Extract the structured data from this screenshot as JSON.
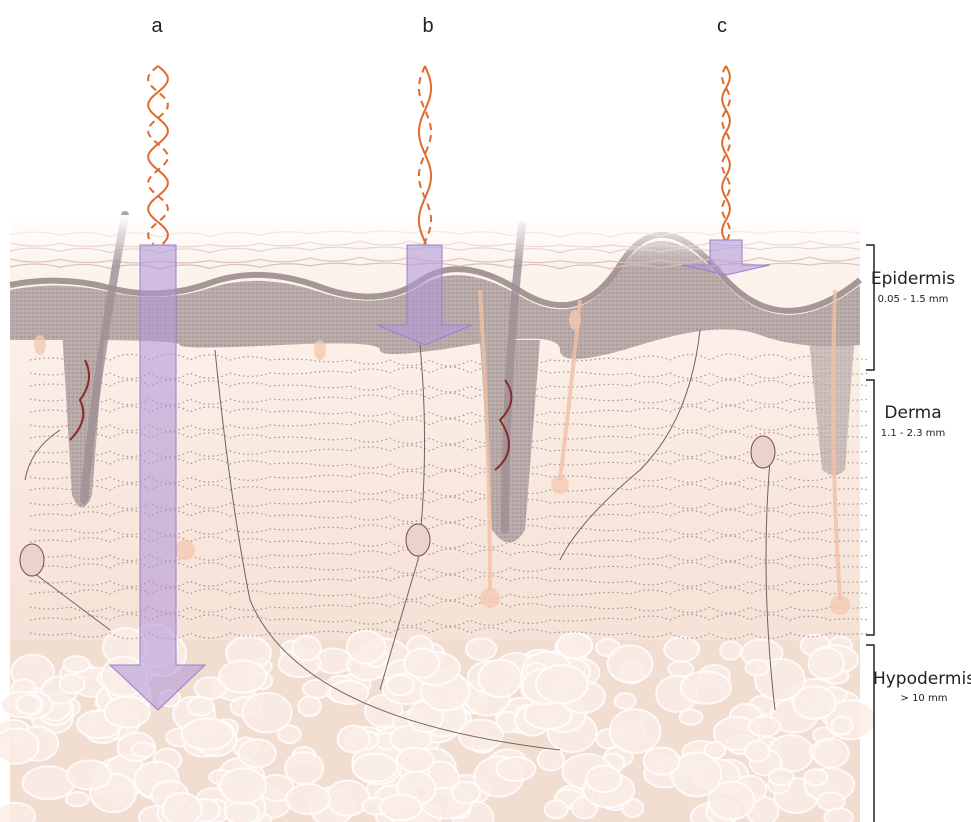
{
  "panels": [
    {
      "label": "a"
    },
    {
      "label": "b"
    },
    {
      "label": "c"
    }
  ],
  "layers": [
    {
      "name": "Epidermis",
      "thickness": "0.05 - 1.5 mm"
    },
    {
      "name": "Derma",
      "thickness": "1.1 - 2.3 mm"
    },
    {
      "name": "Hypodermis",
      "thickness": "> 10 mm"
    }
  ]
}
